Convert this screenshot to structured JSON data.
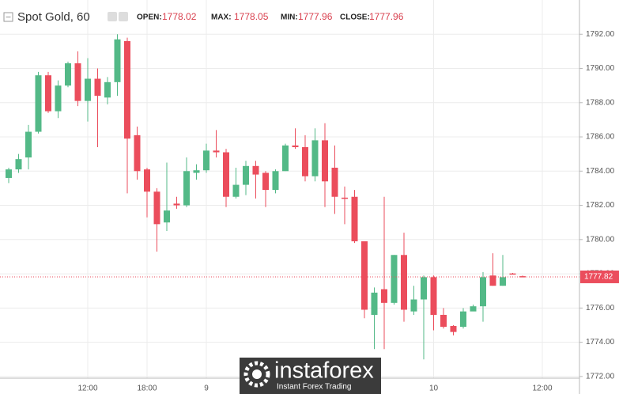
{
  "chart_data": {
    "type": "candlestick",
    "symbol": "Spot Gold, 60",
    "fields": [
      {
        "label": "OPEN:",
        "value": 1778.02
      },
      {
        "label": "MAX:",
        "value": 1778.05
      },
      {
        "label": "MIN:",
        "value": 1777.96
      },
      {
        "label": "CLOSE:",
        "value": 1777.96
      }
    ],
    "categories": [
      null,
      null,
      null,
      null,
      null,
      null,
      null,
      null,
      "12:00",
      null,
      null,
      null,
      null,
      null,
      "18:00",
      null,
      null,
      null,
      null,
      null,
      "9",
      null,
      null,
      null,
      null,
      null,
      null,
      null,
      null,
      null,
      null,
      null,
      null,
      null,
      null,
      null,
      null,
      null,
      null,
      null,
      null,
      null,
      null,
      "10",
      null,
      null,
      null,
      null,
      null,
      null,
      null,
      null,
      null,
      null,
      "12:00"
    ],
    "open": [
      1783.6,
      1784.1,
      1784.8,
      1786.3,
      1789.6,
      1787.5,
      1789.0,
      1790.3,
      1788.1,
      1789.4,
      1788.3,
      1789.2,
      1791.6,
      1786.1,
      1784.1,
      1782.8,
      1781.0,
      1782.1,
      1782.0,
      1783.9,
      1784.05,
      1785.2,
      1785.1,
      1782.5,
      1783.2,
      1784.3,
      1783.9,
      1782.9,
      1784.0,
      1785.5,
      1785.4,
      1783.7,
      1785.8,
      1784.2,
      1782.45,
      1782.5,
      1779.9,
      1775.6,
      1777.1,
      1776.3,
      1779.1,
      1775.8,
      1776.5,
      1777.8,
      1775.6,
      1774.95,
      1774.9,
      1775.8,
      1776.1,
      1777.9,
      1777.3,
      1778.02,
      1777.86,
      null,
      null
    ],
    "high": [
      1784.2,
      1785.0,
      1786.7,
      1789.8,
      1789.8,
      1789.3,
      1790.4,
      1791.0,
      1790.6,
      1790.0,
      1789.5,
      1792.0,
      1791.8,
      1786.6,
      1784.2,
      1783.0,
      1784.5,
      1782.5,
      1784.8,
      1784.4,
      1785.6,
      1786.4,
      1785.3,
      1784.2,
      1784.6,
      1784.6,
      1784.0,
      1784.1,
      1785.6,
      1786.5,
      1786.1,
      1786.5,
      1786.8,
      1785.5,
      1783.1,
      1782.9,
      1779.9,
      1777.2,
      1782.5,
      1779.1,
      1780.4,
      1777.3,
      1777.9,
      1777.9,
      1776.0,
      1775.0,
      1776.0,
      1776.2,
      1778.1,
      1779.2,
      1779.1,
      1778.05,
      1777.9,
      null,
      null
    ],
    "low": [
      1783.3,
      1783.9,
      1784.1,
      1786.2,
      1787.4,
      1787.1,
      1788.9,
      1787.8,
      1786.9,
      1785.4,
      1787.9,
      1788.4,
      1782.7,
      1783.5,
      1781.3,
      1779.3,
      1780.5,
      1781.8,
      1781.9,
      1783.5,
      1783.9,
      1784.8,
      1781.9,
      1782.4,
      1782.6,
      1782.4,
      1781.9,
      1782.7,
      1784.0,
      1785.3,
      1783.4,
      1783.4,
      1781.9,
      1781.5,
      1780.9,
      1779.8,
      1775.4,
      1773.6,
      1773.6,
      1776.2,
      1775.2,
      1775.6,
      1773.0,
      1774.7,
      1774.8,
      1774.4,
      1774.8,
      1775.9,
      1775.2,
      1777.3,
      1777.3,
      1777.96,
      1777.8,
      null,
      null
    ],
    "close": [
      1784.1,
      1784.7,
      1786.3,
      1789.6,
      1787.5,
      1789.0,
      1790.3,
      1788.1,
      1789.4,
      1788.4,
      1789.2,
      1791.7,
      1785.9,
      1784.0,
      1782.8,
      1780.9,
      1781.7,
      1782.0,
      1784.0,
      1784.05,
      1785.2,
      1785.1,
      1782.5,
      1783.2,
      1784.3,
      1783.8,
      1782.9,
      1784.0,
      1785.5,
      1785.4,
      1783.7,
      1785.8,
      1783.4,
      1782.5,
      1782.4,
      1779.9,
      1775.9,
      1776.9,
      1776.3,
      1779.1,
      1775.9,
      1776.5,
      1777.8,
      1775.6,
      1774.9,
      1774.6,
      1775.8,
      1776.1,
      1777.8,
      1777.3,
      1777.8,
      1777.96,
      1777.82,
      null,
      null
    ],
    "up_color": "#53b987",
    "down_color": "#eb4d5c",
    "ylim": [
      1771.9,
      1794.0
    ],
    "yticks": [
      {
        "value": 1772,
        "label": "1772.00"
      },
      {
        "value": 1774,
        "label": "1774.00"
      },
      {
        "value": 1776,
        "label": "1776.00"
      },
      {
        "value": 1778,
        "label": "1778.00"
      },
      {
        "value": 1780,
        "label": "1780.00"
      },
      {
        "value": 1782,
        "label": "1782.00"
      },
      {
        "value": 1784,
        "label": "1784.00"
      },
      {
        "value": 1786,
        "label": "1786.00"
      },
      {
        "value": 1788,
        "label": "1788.00"
      },
      {
        "value": 1790,
        "label": "1790.00"
      },
      {
        "value": 1792,
        "label": "1792.00"
      }
    ],
    "last_price": 1777.82,
    "grid": true,
    "watermark": {
      "brand": "instaforex",
      "tagline": "Instant Forex Trading"
    }
  }
}
